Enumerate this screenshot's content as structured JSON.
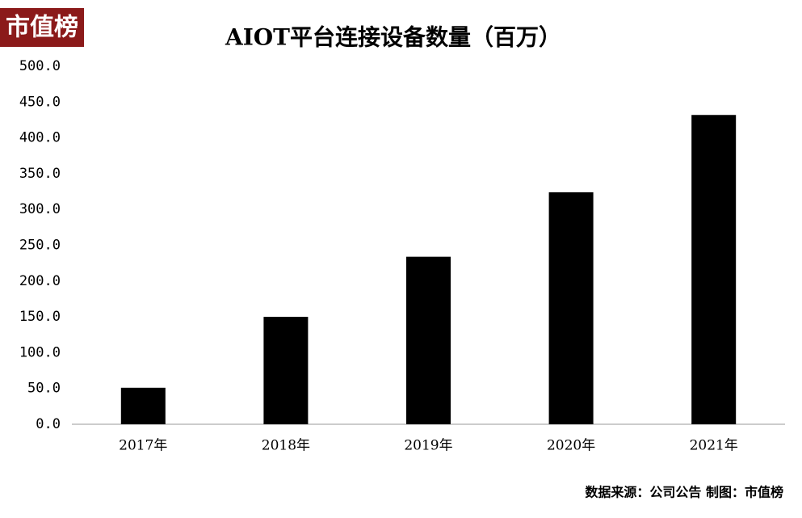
{
  "chart_data": {
    "type": "bar",
    "logo": "市值榜",
    "title": "AIOT平台连接设备数量（百万）",
    "categories": [
      "2017年",
      "2018年",
      "2019年",
      "2020年",
      "2021年"
    ],
    "values": [
      51,
      150,
      234,
      324,
      432
    ],
    "color": "#000000",
    "ylim": [
      0,
      500
    ],
    "yticks": [
      {
        "value": 0,
        "label": "0.0"
      },
      {
        "value": 50,
        "label": "50.0"
      },
      {
        "value": 100,
        "label": "100.0"
      },
      {
        "value": 150,
        "label": "150.0"
      },
      {
        "value": 200,
        "label": "200.0"
      },
      {
        "value": 250,
        "label": "250.0"
      },
      {
        "value": 300,
        "label": "300.0"
      },
      {
        "value": 350,
        "label": "350.0"
      },
      {
        "value": 400,
        "label": "400.0"
      },
      {
        "value": 450,
        "label": "450.0"
      },
      {
        "value": 500,
        "label": "500.0"
      }
    ],
    "grid": false,
    "source": "数据来源：公司公告  制图：市值榜"
  }
}
